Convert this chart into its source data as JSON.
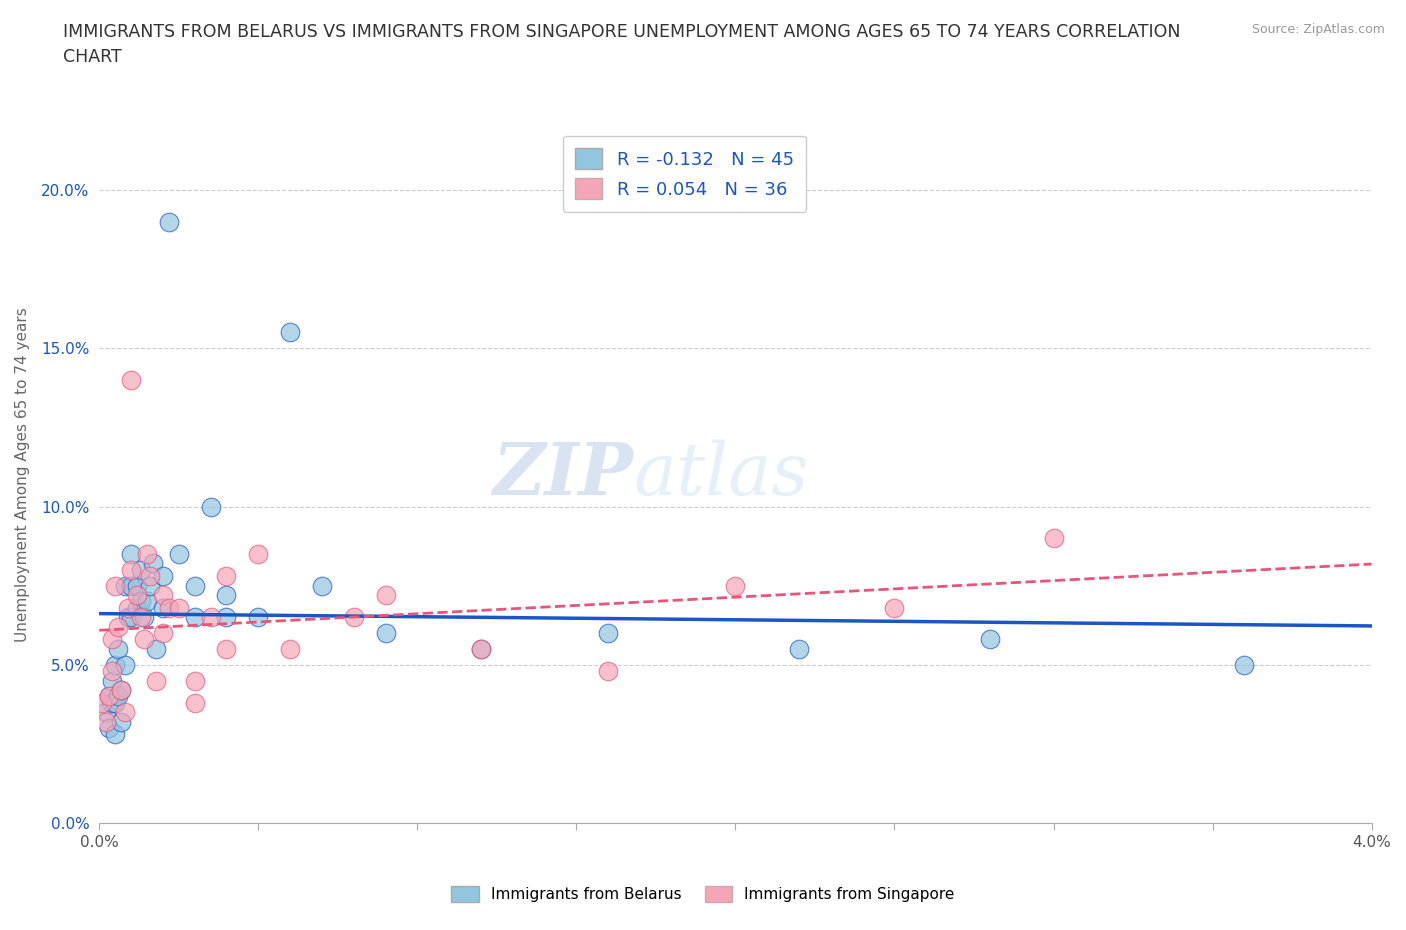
{
  "title": "IMMIGRANTS FROM BELARUS VS IMMIGRANTS FROM SINGAPORE UNEMPLOYMENT AMONG AGES 65 TO 74 YEARS CORRELATION\nCHART",
  "source": "Source: ZipAtlas.com",
  "ylabel": "Unemployment Among Ages 65 to 74 years",
  "xlim": [
    0.0,
    0.04
  ],
  "ylim": [
    0.0,
    0.22
  ],
  "xticks": [
    0.0,
    0.005,
    0.01,
    0.015,
    0.02,
    0.025,
    0.03,
    0.035,
    0.04
  ],
  "yticks": [
    0.0,
    0.05,
    0.1,
    0.15,
    0.2
  ],
  "ytick_labels": [
    "0.0%",
    "5.0%",
    "10.0%",
    "15.0%",
    "20.0%"
  ],
  "xtick_labels": [
    "0.0%",
    "",
    "",
    "",
    "",
    "",
    "",
    "",
    "4.0%"
  ],
  "R_belarus": -0.132,
  "N_belarus": 45,
  "R_singapore": 0.054,
  "N_singapore": 36,
  "color_belarus": "#92c5de",
  "color_singapore": "#f4a6b8",
  "color_trendline_belarus": "#1a56c4",
  "color_trendline_singapore": "#e8547a",
  "legend_label_belarus": "Immigrants from Belarus",
  "legend_label_singapore": "Immigrants from Singapore",
  "watermark_zip": "ZIP",
  "watermark_atlas": "atlas",
  "belarus_x": [
    0.0002,
    0.0003,
    0.0003,
    0.0004,
    0.0004,
    0.0005,
    0.0005,
    0.0005,
    0.0006,
    0.0006,
    0.0007,
    0.0007,
    0.0008,
    0.0008,
    0.0009,
    0.001,
    0.001,
    0.001,
    0.0012,
    0.0012,
    0.0013,
    0.0013,
    0.0014,
    0.0015,
    0.0016,
    0.0017,
    0.0018,
    0.002,
    0.002,
    0.0022,
    0.0025,
    0.003,
    0.003,
    0.0035,
    0.004,
    0.004,
    0.005,
    0.006,
    0.007,
    0.009,
    0.012,
    0.016,
    0.022,
    0.028,
    0.036
  ],
  "belarus_y": [
    0.035,
    0.04,
    0.03,
    0.045,
    0.038,
    0.05,
    0.038,
    0.028,
    0.055,
    0.04,
    0.042,
    0.032,
    0.075,
    0.05,
    0.065,
    0.085,
    0.075,
    0.065,
    0.075,
    0.068,
    0.08,
    0.07,
    0.065,
    0.07,
    0.075,
    0.082,
    0.055,
    0.068,
    0.078,
    0.19,
    0.085,
    0.075,
    0.065,
    0.1,
    0.065,
    0.072,
    0.065,
    0.155,
    0.075,
    0.06,
    0.055,
    0.06,
    0.055,
    0.058,
    0.05
  ],
  "singapore_x": [
    0.0001,
    0.0002,
    0.0003,
    0.0004,
    0.0004,
    0.0005,
    0.0006,
    0.0007,
    0.0008,
    0.0009,
    0.001,
    0.001,
    0.0012,
    0.0013,
    0.0014,
    0.0015,
    0.0016,
    0.0018,
    0.002,
    0.002,
    0.0022,
    0.0025,
    0.003,
    0.003,
    0.0035,
    0.004,
    0.004,
    0.005,
    0.006,
    0.008,
    0.009,
    0.012,
    0.016,
    0.02,
    0.025,
    0.03
  ],
  "singapore_y": [
    0.038,
    0.032,
    0.04,
    0.058,
    0.048,
    0.075,
    0.062,
    0.042,
    0.035,
    0.068,
    0.08,
    0.14,
    0.072,
    0.065,
    0.058,
    0.085,
    0.078,
    0.045,
    0.072,
    0.06,
    0.068,
    0.068,
    0.045,
    0.038,
    0.065,
    0.078,
    0.055,
    0.085,
    0.055,
    0.065,
    0.072,
    0.055,
    0.048,
    0.075,
    0.068,
    0.09
  ]
}
